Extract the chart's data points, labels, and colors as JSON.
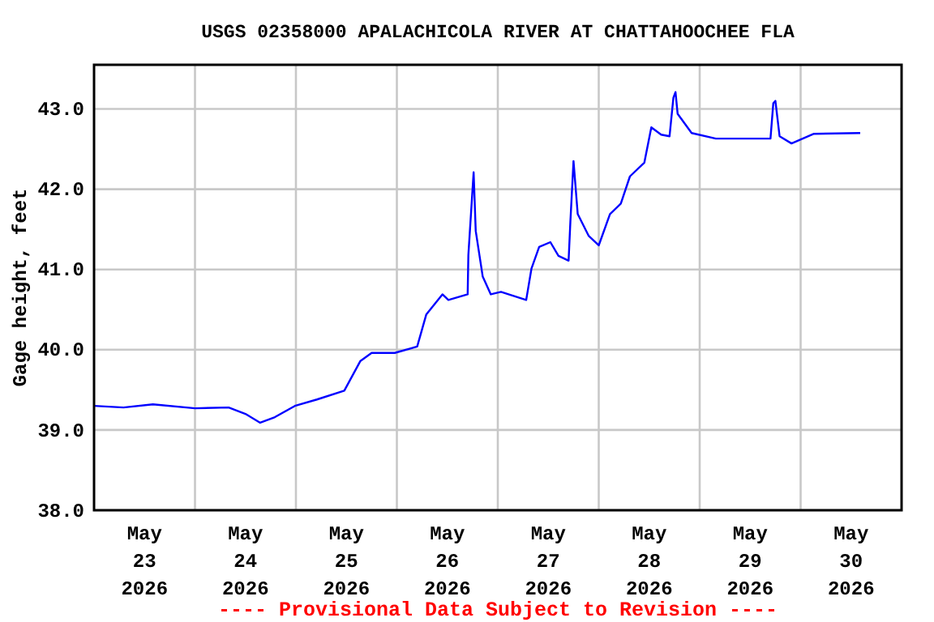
{
  "chart_data": {
    "type": "line",
    "title": "USGS 02358000 APALACHICOLA RIVER AT CHATTAHOOCHEE FLA",
    "ylabel": "Gage height, feet",
    "annotations": [
      "---- Provisional Data Subject to Revision ----"
    ],
    "x": [
      "2026-05-23T00:00",
      "2026-05-23T07:00",
      "2026-05-23T14:00",
      "2026-05-24T00:00",
      "2026-05-24T08:00",
      "2026-05-24T12:00",
      "2026-05-24T15:30",
      "2026-05-24T19:00",
      "2026-05-24T23:45",
      "2026-05-25T05:00",
      "2026-05-25T11:30",
      "2026-05-25T15:20",
      "2026-05-25T18:00",
      "2026-05-25T23:30",
      "2026-05-26T04:50",
      "2026-05-26T07:00",
      "2026-05-26T10:50",
      "2026-05-26T12:15",
      "2026-05-26T16:50",
      "2026-05-26T17:00",
      "2026-05-26T18:15",
      "2026-05-26T18:45",
      "2026-05-26T20:25",
      "2026-05-26T22:20",
      "2026-05-27T00:45",
      "2026-05-27T06:45",
      "2026-05-27T08:00",
      "2026-05-27T09:50",
      "2026-05-27T12:30",
      "2026-05-27T14:25",
      "2026-05-27T16:50",
      "2026-05-27T17:15",
      "2026-05-27T18:00",
      "2026-05-27T19:00",
      "2026-05-27T21:35",
      "2026-05-28T00:00",
      "2026-05-28T02:40",
      "2026-05-28T05:15",
      "2026-05-28T07:25",
      "2026-05-28T10:50",
      "2026-05-28T12:30",
      "2026-05-28T14:50",
      "2026-05-28T16:50",
      "2026-05-28T17:45",
      "2026-05-28T18:15",
      "2026-05-28T18:45",
      "2026-05-28T22:05",
      "2026-05-29T03:50",
      "2026-05-29T16:50",
      "2026-05-29T17:30",
      "2026-05-29T18:00",
      "2026-05-29T19:00",
      "2026-05-29T21:50",
      "2026-05-30T03:10",
      "2026-05-30T14:10"
    ],
    "series": [
      {
        "color": "#0000ff",
        "values": [
          39.3,
          39.28,
          39.32,
          39.27,
          39.28,
          39.2,
          39.09,
          39.16,
          39.3,
          39.38,
          39.49,
          39.86,
          39.96,
          39.96,
          40.04,
          40.44,
          40.69,
          40.62,
          40.69,
          41.18,
          42.21,
          41.48,
          40.91,
          40.69,
          40.72,
          40.62,
          41.01,
          41.28,
          41.34,
          41.17,
          41.11,
          41.59,
          42.35,
          41.69,
          41.42,
          41.3,
          41.69,
          41.82,
          42.16,
          42.33,
          42.77,
          42.68,
          42.66,
          43.14,
          43.21,
          42.94,
          42.7,
          42.63,
          42.63,
          43.07,
          43.1,
          42.66,
          42.57,
          42.69,
          42.7
        ]
      }
    ],
    "xlim": [
      "2026-05-23T00:00",
      "2026-05-31T00:00"
    ],
    "xticks": [
      {
        "value": "2026-05-23T12:00",
        "label": "May\n23\n2026"
      },
      {
        "value": "2026-05-24T12:00",
        "label": "May\n24\n2026"
      },
      {
        "value": "2026-05-25T12:00",
        "label": "May\n25\n2026"
      },
      {
        "value": "2026-05-26T12:00",
        "label": "May\n26\n2026"
      },
      {
        "value": "2026-05-27T12:00",
        "label": "May\n27\n2026"
      },
      {
        "value": "2026-05-28T12:00",
        "label": "May\n28\n2026"
      },
      {
        "value": "2026-05-29T12:00",
        "label": "May\n29\n2026"
      },
      {
        "value": "2026-05-30T12:00",
        "label": "May\n30\n2026"
      },
      {
        "value": "2026-05-24T00:00",
        "label": null
      },
      {
        "value": "2026-05-25T00:00",
        "label": null
      },
      {
        "value": "2026-05-26T00:00",
        "label": null
      },
      {
        "value": "2026-05-27T00:00",
        "label": null
      },
      {
        "value": "2026-05-28T00:00",
        "label": null
      },
      {
        "value": "2026-05-29T00:00",
        "label": null
      },
      {
        "value": "2026-05-30T00:00",
        "label": null
      }
    ],
    "ylim": [
      38,
      43.55
    ],
    "yticks": [
      {
        "value": 38,
        "label": "38.0"
      },
      {
        "value": 39,
        "label": "39.0"
      },
      {
        "value": 40,
        "label": "40.0"
      },
      {
        "value": 41,
        "label": "41.0"
      },
      {
        "value": 42,
        "label": "42.0"
      },
      {
        "value": 43,
        "label": "43.0"
      }
    ],
    "grid": true,
    "marker": "none",
    "line_style": "solid"
  }
}
